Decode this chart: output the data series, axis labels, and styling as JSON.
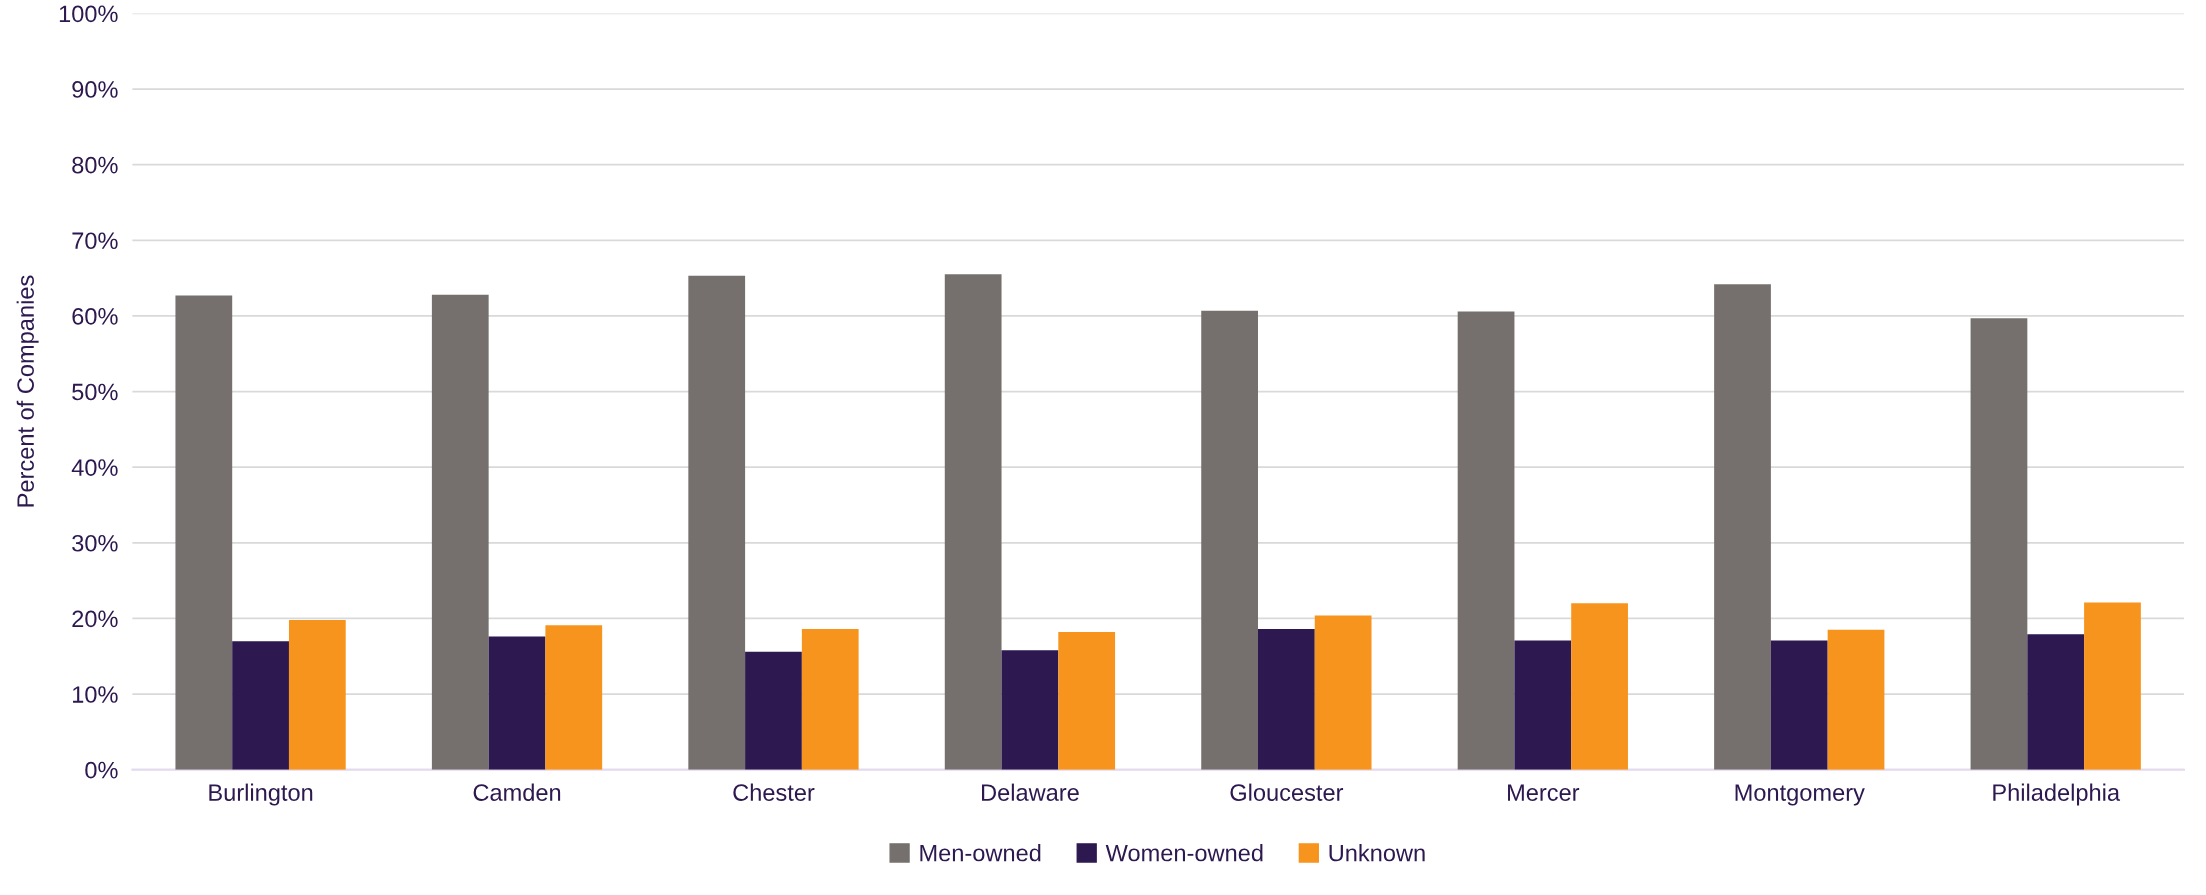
{
  "chart_data": {
    "type": "bar",
    "ylabel": "Percent of Companies",
    "categories": [
      "Burlington",
      "Camden",
      "Chester",
      "Delaware",
      "Gloucester",
      "Mercer",
      "Montgomery",
      "Philadelphia"
    ],
    "series": [
      {
        "name": "Men-owned",
        "color": "#75706e",
        "values": [
          62.7,
          62.8,
          65.3,
          65.5,
          60.7,
          60.6,
          64.2,
          59.7
        ]
      },
      {
        "name": "Women-owned",
        "color": "#2d1950",
        "values": [
          17.0,
          17.6,
          15.6,
          15.8,
          18.6,
          17.1,
          17.1,
          17.9
        ]
      },
      {
        "name": "Unknown",
        "color": "#f7941e",
        "values": [
          19.8,
          19.1,
          18.6,
          18.2,
          20.4,
          22.0,
          18.5,
          22.1
        ]
      }
    ],
    "ylim": [
      0,
      100
    ],
    "yticks": [
      {
        "value": 0,
        "label": "0%"
      },
      {
        "value": 10,
        "label": "10%"
      },
      {
        "value": 20,
        "label": "20%"
      },
      {
        "value": 30,
        "label": "30%"
      },
      {
        "value": 40,
        "label": "40%"
      },
      {
        "value": 50,
        "label": "50%"
      },
      {
        "value": 60,
        "label": "60%"
      },
      {
        "value": 70,
        "label": "70%"
      },
      {
        "value": 80,
        "label": "80%"
      },
      {
        "value": 90,
        "label": "90%"
      },
      {
        "value": 100,
        "label": "100%"
      }
    ],
    "grid": "y",
    "legend": "bottom"
  }
}
